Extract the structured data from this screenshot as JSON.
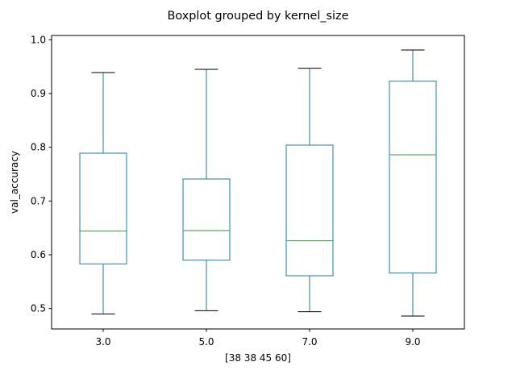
{
  "chart_data": {
    "type": "boxplot",
    "title": "Boxplot grouped by kernel_size",
    "xlabel": "[38 38 45 60]",
    "ylabel": "val_accuracy",
    "ylim": [
      0.462,
      1.008
    ],
    "yticks": [
      0.5,
      0.6,
      0.7,
      0.8,
      0.9,
      1.0
    ],
    "ytick_labels": [
      "0.5",
      "0.6",
      "0.7",
      "0.8",
      "0.9",
      "1.0"
    ],
    "categories": [
      "3.0",
      "5.0",
      "7.0",
      "9.0"
    ],
    "boxes": [
      {
        "category": "3.0",
        "whisker_low": 0.49,
        "q1": 0.583,
        "median": 0.644,
        "q3": 0.789,
        "whisker_high": 0.939
      },
      {
        "category": "5.0",
        "whisker_low": 0.496,
        "q1": 0.59,
        "median": 0.645,
        "q3": 0.741,
        "whisker_high": 0.945
      },
      {
        "category": "7.0",
        "whisker_low": 0.494,
        "q1": 0.561,
        "median": 0.626,
        "q3": 0.804,
        "whisker_high": 0.947
      },
      {
        "category": "9.0",
        "whisker_low": 0.486,
        "q1": 0.566,
        "median": 0.786,
        "q3": 0.923,
        "whisker_high": 0.981
      }
    ],
    "grid": false,
    "colors": {
      "box": "#1f77b4",
      "median": "#2ca02c",
      "caps": "#000000",
      "axes": "#000000"
    }
  }
}
